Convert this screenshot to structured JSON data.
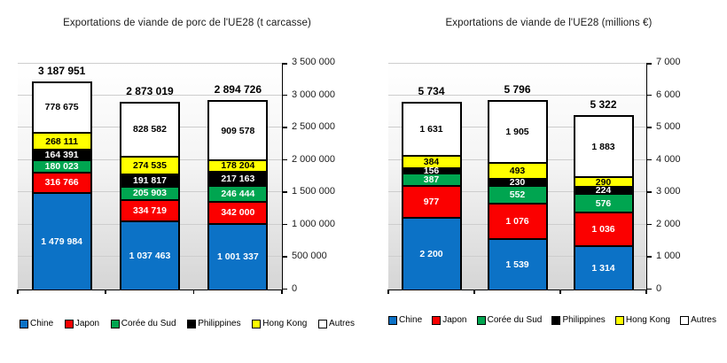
{
  "chart_data": [
    {
      "type": "bar",
      "stacked": true,
      "title": "Exportations de viande de porc de l'UE28 (t carcasse)",
      "categories": [
        "",
        "",
        ""
      ],
      "series": [
        {
          "name": "Chine",
          "color": "#0c72c6",
          "label_color": "#ffffff",
          "values": [
            1479984,
            1037463,
            1001337
          ]
        },
        {
          "name": "Japon",
          "color": "#fb0000",
          "label_color": "#ffffff",
          "values": [
            316766,
            334719,
            342000
          ]
        },
        {
          "name": "Corée du Sud",
          "color": "#00a550",
          "label_color": "#ffffff",
          "values": [
            180023,
            205903,
            246444
          ]
        },
        {
          "name": "Philippines",
          "color": "#000000",
          "label_color": "#ffffff",
          "values": [
            164391,
            191817,
            217163
          ]
        },
        {
          "name": "Hong Kong",
          "color": "#ffff00",
          "label_color": "#000000",
          "values": [
            268111,
            274535,
            178204
          ]
        },
        {
          "name": "Autres",
          "color": "#ffffff",
          "label_color": "#000000",
          "values": [
            778675,
            828582,
            909578
          ]
        }
      ],
      "totals": [
        3187951,
        2873019,
        2894726
      ],
      "ylim": [
        0,
        3500000
      ],
      "ytick_step": 500000,
      "grid": true,
      "axis_side": "right",
      "legend_position": "bottom"
    },
    {
      "type": "bar",
      "stacked": true,
      "title": "Exportations de viande de l'UE28 (millions €)",
      "categories": [
        "",
        "",
        ""
      ],
      "series": [
        {
          "name": "Chine",
          "color": "#0c72c6",
          "label_color": "#ffffff",
          "values": [
            2200,
            1539,
            1314
          ]
        },
        {
          "name": "Japon",
          "color": "#fb0000",
          "label_color": "#ffffff",
          "values": [
            977,
            1076,
            1036
          ]
        },
        {
          "name": "Corée du Sud",
          "color": "#00a550",
          "label_color": "#ffffff",
          "values": [
            387,
            552,
            576
          ]
        },
        {
          "name": "Philippines",
          "color": "#000000",
          "label_color": "#ffffff",
          "values": [
            156,
            230,
            224
          ]
        },
        {
          "name": "Hong Kong",
          "color": "#ffff00",
          "label_color": "#000000",
          "values": [
            384,
            493,
            290
          ]
        },
        {
          "name": "Autres",
          "color": "#ffffff",
          "label_color": "#000000",
          "values": [
            1631,
            1905,
            1883
          ]
        }
      ],
      "totals": [
        5734,
        5796,
        5322
      ],
      "ylim": [
        0,
        7000
      ],
      "ytick_step": 1000,
      "grid": true,
      "axis_side": "right",
      "legend_position": "bottom"
    }
  ],
  "legend_items": [
    "Chine",
    "Japon",
    "Corée du Sud",
    "Philippines",
    "Hong Kong",
    "Autres"
  ],
  "colors": {
    "chine": "#0c72c6",
    "japon": "#fb0000",
    "coree_du_sud": "#00a550",
    "philippines": "#000000",
    "hong_kong": "#ffff00",
    "autres": "#ffffff",
    "gridline": "#cdcdcd",
    "axis": "#000000"
  }
}
